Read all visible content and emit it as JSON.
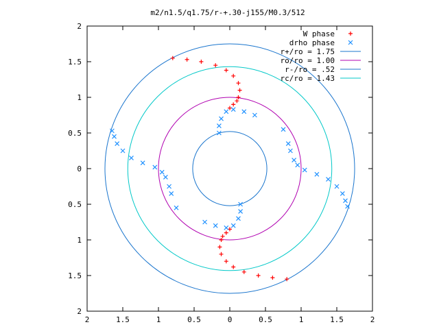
{
  "chart_data": {
    "type": "scatter",
    "title": "m2/n1.5/q1.75/r-+.30-j155/M0.3/512",
    "xlabel": "",
    "ylabel": "",
    "xlim": [
      -2,
      2
    ],
    "ylim": [
      -2,
      2
    ],
    "x_tick_labels": [
      "2",
      "1.5",
      "1",
      "0.5",
      "0",
      "0.5",
      "1",
      "1.5",
      "2"
    ],
    "y_tick_labels": [
      "2",
      "1.5",
      "1",
      "0.5",
      "0",
      "0.5",
      "1",
      "1.5",
      "2"
    ],
    "grid": false,
    "legend_position": "top-right",
    "colors": {
      "w_phase": "#ff0000",
      "drho_phase": "#1e90ff",
      "r_plus": "#1874cd",
      "r_o": "#b000b0",
      "r_minus": "#1874cd",
      "r_c": "#00c8c8"
    },
    "series": [
      {
        "name": "W phase",
        "marker": "plus",
        "color": "#ff0000",
        "points": [
          [
            -0.8,
            1.55
          ],
          [
            -0.6,
            1.53
          ],
          [
            -0.4,
            1.5
          ],
          [
            -0.2,
            1.45
          ],
          [
            -0.05,
            1.38
          ],
          [
            0.05,
            1.3
          ],
          [
            0.12,
            1.2
          ],
          [
            0.14,
            1.1
          ],
          [
            0.12,
            1.0
          ],
          [
            0.1,
            0.95
          ],
          [
            0.05,
            0.9
          ],
          [
            0.0,
            0.85
          ],
          [
            0.8,
            -1.55
          ],
          [
            0.6,
            -1.53
          ],
          [
            0.4,
            -1.5
          ],
          [
            0.2,
            -1.45
          ],
          [
            0.05,
            -1.38
          ],
          [
            -0.05,
            -1.3
          ],
          [
            -0.12,
            -1.2
          ],
          [
            -0.14,
            -1.1
          ],
          [
            -0.12,
            -1.0
          ],
          [
            -0.1,
            -0.95
          ],
          [
            -0.05,
            -0.9
          ],
          [
            0.0,
            -0.85
          ]
        ]
      },
      {
        "name": "drho phase",
        "marker": "cross",
        "color": "#1e90ff",
        "points": [
          [
            -1.65,
            0.53
          ],
          [
            -1.62,
            0.45
          ],
          [
            -1.58,
            0.35
          ],
          [
            -1.5,
            0.25
          ],
          [
            -1.38,
            0.15
          ],
          [
            -1.22,
            0.08
          ],
          [
            -1.05,
            0.02
          ],
          [
            -0.95,
            -0.05
          ],
          [
            -0.9,
            -0.12
          ],
          [
            -0.85,
            -0.25
          ],
          [
            -0.82,
            -0.35
          ],
          [
            -0.75,
            -0.55
          ],
          [
            1.65,
            -0.53
          ],
          [
            1.62,
            -0.45
          ],
          [
            1.58,
            -0.35
          ],
          [
            1.5,
            -0.25
          ],
          [
            1.38,
            -0.15
          ],
          [
            1.22,
            -0.08
          ],
          [
            1.05,
            -0.02
          ],
          [
            0.95,
            0.05
          ],
          [
            0.9,
            0.12
          ],
          [
            0.85,
            0.25
          ],
          [
            0.82,
            0.35
          ],
          [
            0.75,
            0.55
          ],
          [
            -0.15,
            0.5
          ],
          [
            -0.15,
            0.6
          ],
          [
            -0.12,
            0.7
          ],
          [
            -0.05,
            0.8
          ],
          [
            0.05,
            0.83
          ],
          [
            0.2,
            0.8
          ],
          [
            0.35,
            0.75
          ],
          [
            0.15,
            -0.5
          ],
          [
            0.15,
            -0.6
          ],
          [
            0.12,
            -0.7
          ],
          [
            0.05,
            -0.8
          ],
          [
            -0.05,
            -0.83
          ],
          [
            -0.2,
            -0.8
          ],
          [
            -0.35,
            -0.75
          ]
        ]
      }
    ],
    "circles": [
      {
        "name": "r+/ro = 1.75",
        "radius": 1.75,
        "color": "#1874cd"
      },
      {
        "name": "ro/ro = 1.00",
        "radius": 1.0,
        "color": "#b000b0"
      },
      {
        "name": "r-/ro = .52",
        "radius": 0.52,
        "color": "#1874cd"
      },
      {
        "name": "rc/ro = 1.43",
        "radius": 1.43,
        "color": "#00c8c8"
      }
    ]
  }
}
